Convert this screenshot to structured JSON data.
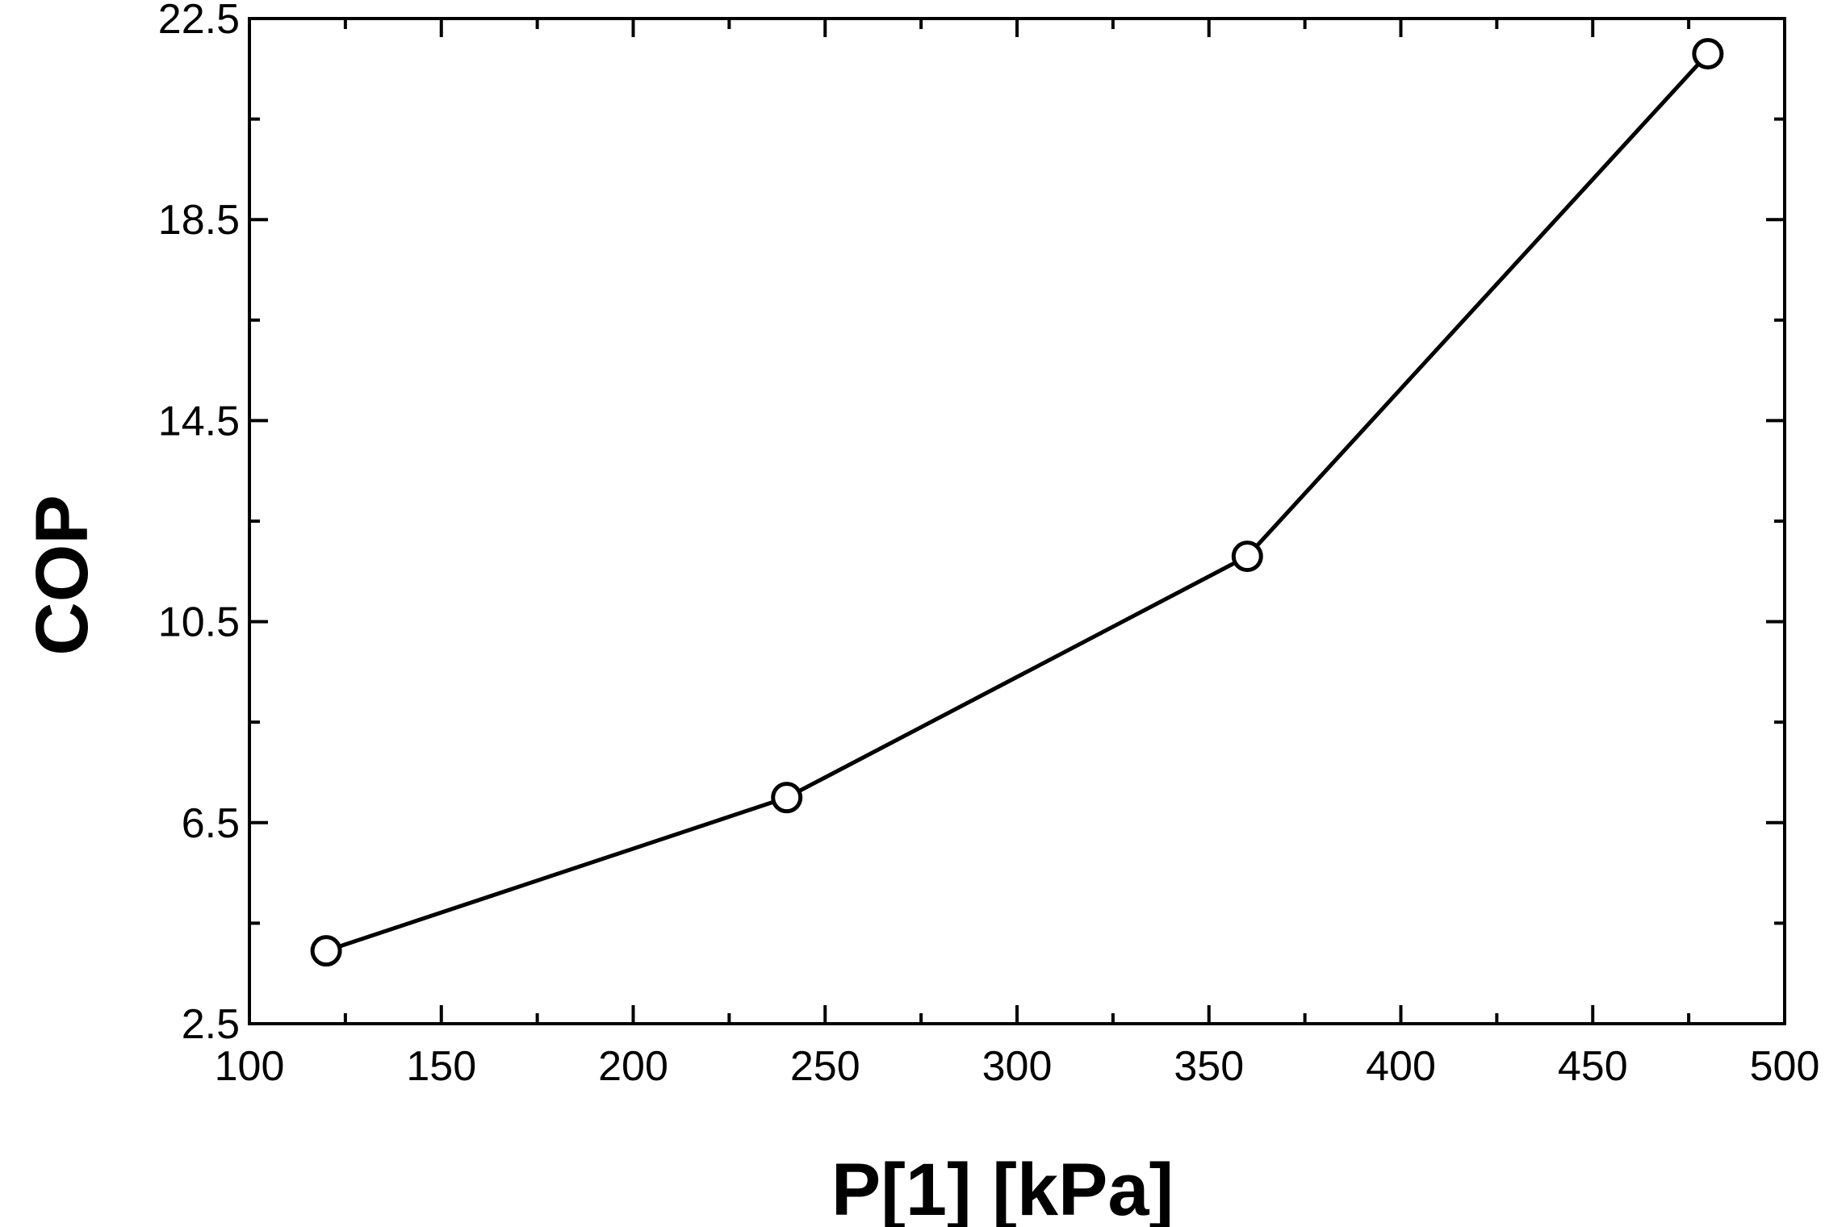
{
  "chart_data": {
    "type": "line",
    "title": "",
    "xlabel": "P[1]  [kPa]",
    "ylabel": "COP",
    "xlim": [
      100,
      500
    ],
    "ylim": [
      2.5,
      22.5
    ],
    "x_ticks": [
      100,
      150,
      200,
      250,
      300,
      350,
      400,
      450,
      500
    ],
    "x_tick_labels": [
      "100",
      "150",
      "200",
      "250",
      "300",
      "350",
      "400",
      "450",
      "500"
    ],
    "y_ticks": [
      2.5,
      6.5,
      10.5,
      14.5,
      18.5,
      22.5
    ],
    "y_tick_labels": [
      "2.5",
      "6.5",
      "10.5",
      "14.5",
      "18.5",
      "22.5"
    ],
    "x_minor_step": 25,
    "y_minor_step": 2,
    "grid": false,
    "series": [
      {
        "x": [
          120,
          240,
          360,
          480
        ],
        "values": [
          3.95,
          7.0,
          11.8,
          21.8
        ],
        "marker": "open-circle",
        "color": "#000000"
      }
    ]
  }
}
